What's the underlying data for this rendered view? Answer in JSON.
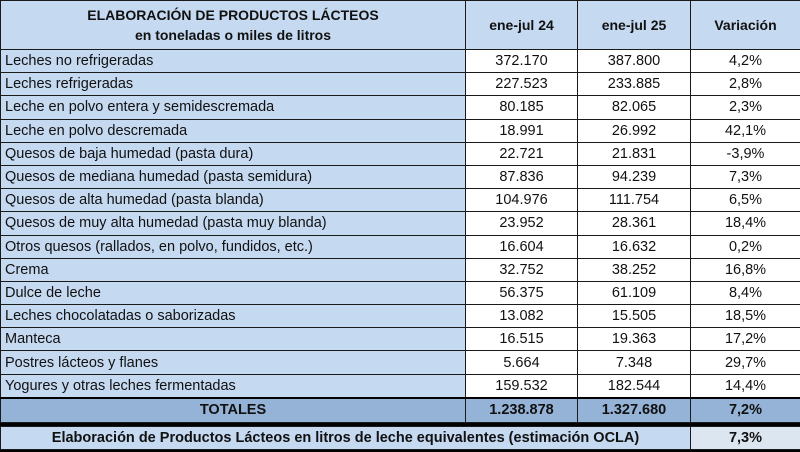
{
  "header": {
    "title": "ELABORACIÓN DE PRODUCTOS LÁCTEOS",
    "subtitle": "en toneladas o miles de litros",
    "col1": "ene-jul 24",
    "col2": "ene-jul 25",
    "col3": "Variación"
  },
  "rows": [
    {
      "label": "Leches no refrigeradas",
      "v24": "372.170",
      "v25": "387.800",
      "var": "4,2%"
    },
    {
      "label": "Leches refrigeradas",
      "v24": "227.523",
      "v25": "233.885",
      "var": "2,8%"
    },
    {
      "label": "Leche en polvo entera y semidescremada",
      "v24": "80.185",
      "v25": "82.065",
      "var": "2,3%"
    },
    {
      "label": "Leche en polvo descremada",
      "v24": "18.991",
      "v25": "26.992",
      "var": "42,1%"
    },
    {
      "label": "Quesos de baja humedad (pasta dura)",
      "v24": "22.721",
      "v25": "21.831",
      "var": "-3,9%"
    },
    {
      "label": "Quesos de mediana humedad (pasta semidura)",
      "v24": "87.836",
      "v25": "94.239",
      "var": "7,3%"
    },
    {
      "label": "Quesos de alta humedad (pasta blanda)",
      "v24": "104.976",
      "v25": "111.754",
      "var": "6,5%"
    },
    {
      "label": "Quesos de muy alta humedad (pasta muy blanda)",
      "v24": "23.952",
      "v25": "28.361",
      "var": "18,4%"
    },
    {
      "label": "Otros quesos (rallados, en polvo, fundidos, etc.)",
      "v24": "16.604",
      "v25": "16.632",
      "var": "0,2%"
    },
    {
      "label": "Crema",
      "v24": "32.752",
      "v25": "38.252",
      "var": "16,8%"
    },
    {
      "label": "Dulce de leche",
      "v24": "56.375",
      "v25": "61.109",
      "var": "8,4%"
    },
    {
      "label": "Leches chocolatadas o saborizadas",
      "v24": "13.082",
      "v25": "15.505",
      "var": "18,5%"
    },
    {
      "label": "Manteca",
      "v24": "16.515",
      "v25": "19.363",
      "var": "17,2%"
    },
    {
      "label": "Postres lácteos y flanes",
      "v24": "5.664",
      "v25": "7.348",
      "var": "29,7%"
    },
    {
      "label": "Yogures y otras leches fermentadas",
      "v24": "159.532",
      "v25": "182.544",
      "var": "14,4%"
    }
  ],
  "totals": {
    "label": "TOTALES",
    "v24": "1.238.878",
    "v25": "1.327.680",
    "var": "7,2%"
  },
  "footer": {
    "label": "Elaboración de Productos Lácteos en litros de leche equivalentes (estimación OCLA)",
    "var": "7,3%"
  }
}
